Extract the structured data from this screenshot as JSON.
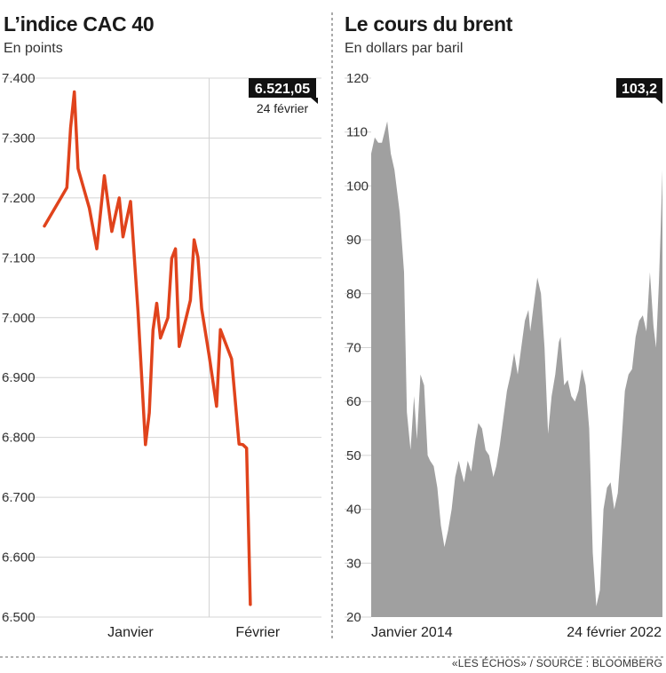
{
  "source": "«LES ÉCHOS» / SOURCE : BLOOMBERG",
  "colors": {
    "cac_line": "#e0431c",
    "brent_fill": "#a0a0a0",
    "grid": "#d4d4d4",
    "badge": "#111111"
  },
  "chart_data": [
    {
      "type": "line",
      "title": "L’indice CAC 40",
      "subtitle": "En points",
      "ylim": [
        6500,
        7400
      ],
      "y_ticks": [
        6500,
        6600,
        6700,
        6800,
        6900,
        7000,
        7100,
        7200,
        7300,
        7400
      ],
      "y_tick_labels": [
        "6.500",
        "6.600",
        "6.700",
        "6.800",
        "6.900",
        "7.000",
        "7.100",
        "7.200",
        "7.300",
        "7.400"
      ],
      "x_tick_labels": [
        "Janvier",
        "Février"
      ],
      "x_tick_positions": [
        11.5,
        28.5
      ],
      "x_separator": 22,
      "x_count": 38,
      "values": [
        7153,
        7217,
        7317,
        7377,
        7249,
        7183,
        7115,
        7237,
        7144,
        7200,
        7135,
        7194,
        7011,
        6788,
        6841,
        6979,
        7024,
        6966,
        7000,
        7099,
        7115,
        6952,
        7029,
        7130,
        7101,
        7015,
        6937,
        6852,
        6980,
        6931,
        6789,
        6788,
        6782,
        6521
      ],
      "x_values": [
        0,
        3,
        3.5,
        4,
        4.5,
        6,
        7,
        8,
        9,
        10,
        10.5,
        11.5,
        12.5,
        13.5,
        14,
        14.5,
        15,
        15.5,
        16.5,
        17,
        17.5,
        18,
        19.5,
        20,
        20.5,
        21,
        22,
        23,
        23.5,
        25,
        26,
        26.5,
        27,
        27.5
      ],
      "callout": {
        "value": "6.521,05",
        "date": "24 février"
      }
    },
    {
      "type": "area",
      "title": "Le cours du brent",
      "subtitle": "En dollars par baril",
      "ylim": [
        20,
        120
      ],
      "y_ticks": [
        20,
        30,
        40,
        50,
        60,
        70,
        80,
        90,
        100,
        110,
        120
      ],
      "y_tick_labels": [
        "20",
        "30",
        "40",
        "50",
        "60",
        "70",
        "80",
        "90",
        "100",
        "110",
        "120"
      ],
      "x_tick_labels": [
        "Janvier 2014",
        "24 février 2022"
      ],
      "x_range": [
        2014.0,
        2022.15
      ],
      "points": [
        [
          2014.0,
          106
        ],
        [
          2014.1,
          109
        ],
        [
          2014.2,
          108
        ],
        [
          2014.3,
          108
        ],
        [
          2014.45,
          112
        ],
        [
          2014.55,
          106
        ],
        [
          2014.65,
          103
        ],
        [
          2014.8,
          95
        ],
        [
          2014.92,
          84
        ],
        [
          2015.0,
          58
        ],
        [
          2015.1,
          51
        ],
        [
          2015.2,
          61
        ],
        [
          2015.28,
          53
        ],
        [
          2015.38,
          65
        ],
        [
          2015.48,
          63
        ],
        [
          2015.58,
          50
        ],
        [
          2015.65,
          49
        ],
        [
          2015.75,
          48
        ],
        [
          2015.85,
          44
        ],
        [
          2015.95,
          37
        ],
        [
          2016.05,
          33
        ],
        [
          2016.15,
          36
        ],
        [
          2016.25,
          40
        ],
        [
          2016.35,
          46
        ],
        [
          2016.45,
          49
        ],
        [
          2016.52,
          47
        ],
        [
          2016.6,
          45
        ],
        [
          2016.7,
          49
        ],
        [
          2016.8,
          47
        ],
        [
          2016.92,
          53
        ],
        [
          2017.0,
          56
        ],
        [
          2017.1,
          55
        ],
        [
          2017.2,
          51
        ],
        [
          2017.3,
          50
        ],
        [
          2017.42,
          46
        ],
        [
          2017.5,
          48
        ],
        [
          2017.6,
          52
        ],
        [
          2017.7,
          57
        ],
        [
          2017.8,
          62
        ],
        [
          2017.9,
          65
        ],
        [
          2018.0,
          69
        ],
        [
          2018.1,
          65
        ],
        [
          2018.2,
          70
        ],
        [
          2018.3,
          75
        ],
        [
          2018.4,
          77
        ],
        [
          2018.45,
          73
        ],
        [
          2018.55,
          78
        ],
        [
          2018.65,
          83
        ],
        [
          2018.75,
          80
        ],
        [
          2018.85,
          70
        ],
        [
          2018.95,
          54
        ],
        [
          2019.05,
          61
        ],
        [
          2019.15,
          65
        ],
        [
          2019.25,
          71
        ],
        [
          2019.3,
          72
        ],
        [
          2019.4,
          63
        ],
        [
          2019.5,
          64
        ],
        [
          2019.6,
          61
        ],
        [
          2019.7,
          60
        ],
        [
          2019.8,
          62
        ],
        [
          2019.9,
          66
        ],
        [
          2020.0,
          63
        ],
        [
          2020.1,
          55
        ],
        [
          2020.2,
          32
        ],
        [
          2020.3,
          22
        ],
        [
          2020.4,
          25
        ],
        [
          2020.5,
          40
        ],
        [
          2020.6,
          44
        ],
        [
          2020.7,
          45
        ],
        [
          2020.8,
          40
        ],
        [
          2020.9,
          43
        ],
        [
          2021.0,
          52
        ],
        [
          2021.1,
          62
        ],
        [
          2021.2,
          65
        ],
        [
          2021.3,
          66
        ],
        [
          2021.4,
          72
        ],
        [
          2021.5,
          75
        ],
        [
          2021.6,
          76
        ],
        [
          2021.7,
          73
        ],
        [
          2021.8,
          84
        ],
        [
          2021.9,
          74
        ],
        [
          2021.97,
          70
        ],
        [
          2022.05,
          82
        ],
        [
          2022.1,
          92
        ],
        [
          2022.15,
          103
        ]
      ],
      "callout": {
        "value": "103,2"
      }
    }
  ]
}
